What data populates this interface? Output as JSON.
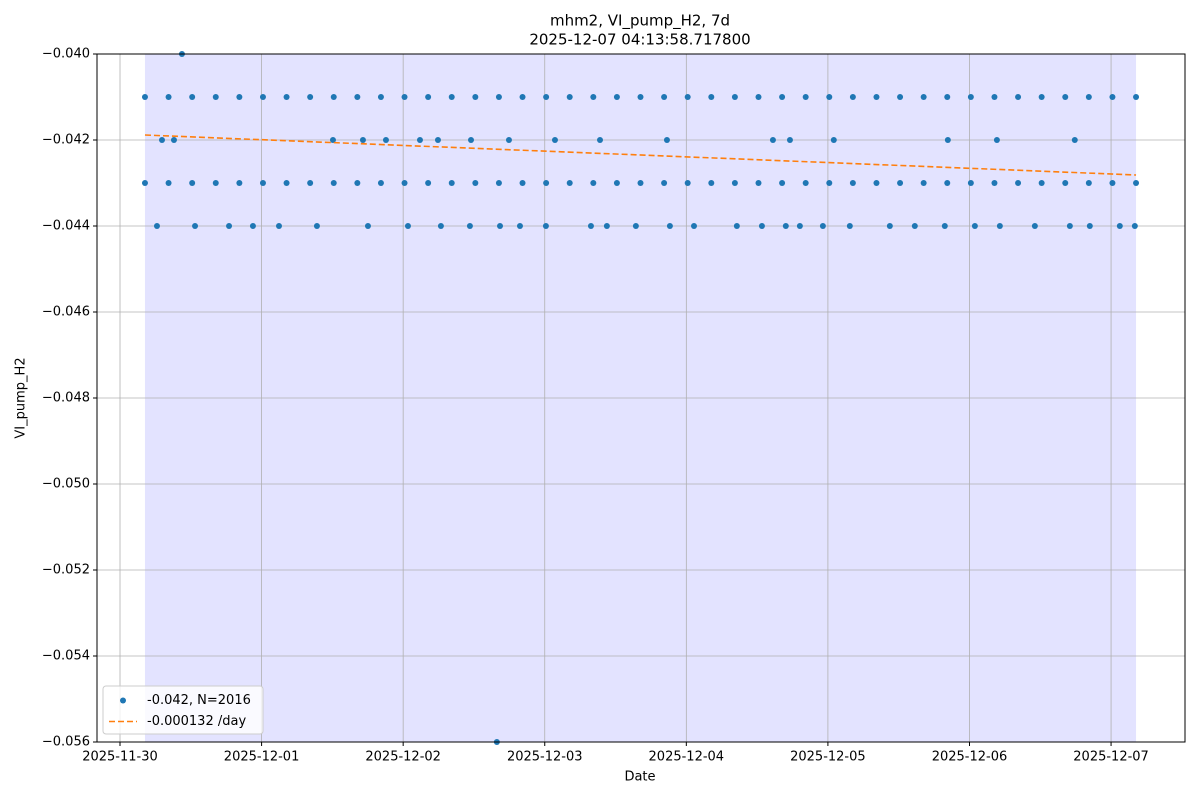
{
  "chart_data": {
    "type": "scatter",
    "title": "mhm2, VI_pump_H2, 7d",
    "subtitle": "2025-12-07 04:13:58.717800",
    "xlabel": "Date",
    "ylabel": "VI_pump_H2",
    "xlim": [
      "2025-11-29T20:06",
      "2025-12-07T12:32"
    ],
    "xticks": [
      "2025-11-30",
      "2025-12-01",
      "2025-12-02",
      "2025-12-03",
      "2025-12-04",
      "2025-12-05",
      "2025-12-06",
      "2025-12-07"
    ],
    "ylim": [
      -0.056,
      -0.04
    ],
    "yticks": [
      {
        "value": -0.056,
        "label": "−0.056"
      },
      {
        "value": -0.054,
        "label": "−0.054"
      },
      {
        "value": -0.052,
        "label": "−0.052"
      },
      {
        "value": -0.05,
        "label": "−0.050"
      },
      {
        "value": -0.048,
        "label": "−0.048"
      },
      {
        "value": -0.046,
        "label": "−0.046"
      },
      {
        "value": -0.044,
        "label": "−0.044"
      },
      {
        "value": -0.042,
        "label": "−0.042"
      },
      {
        "value": -0.04,
        "label": "−0.040"
      }
    ],
    "grid": true,
    "legend": "lower left",
    "span": [
      "2025-11-30T04:14",
      "2025-12-07T04:14"
    ],
    "span_color": "#0000ff",
    "series": [
      {
        "name": "-0.042, N=2016",
        "type": "scatter",
        "color": "#1f77b4",
        "x": [
          "2025-11-30T04:14",
          "2025-11-30T08:14",
          "2025-11-30T12:14",
          "2025-11-30T16:14",
          "2025-11-30T20:14",
          "2025-12-01T00:14",
          "2025-12-01T04:14",
          "2025-12-01T08:14",
          "2025-12-01T12:14",
          "2025-12-01T16:14",
          "2025-12-01T20:14",
          "2025-12-02T00:14",
          "2025-12-02T04:14",
          "2025-12-02T08:14",
          "2025-12-02T12:14",
          "2025-12-02T16:14",
          "2025-12-02T20:14",
          "2025-12-03T00:14",
          "2025-12-03T04:14",
          "2025-12-03T08:14",
          "2025-12-03T12:14",
          "2025-12-03T16:14",
          "2025-12-03T20:14",
          "2025-12-04T00:14",
          "2025-12-04T04:14",
          "2025-12-04T08:14",
          "2025-12-04T12:14",
          "2025-12-04T16:14",
          "2025-12-04T20:14",
          "2025-12-05T00:14",
          "2025-12-05T04:14",
          "2025-12-05T08:14",
          "2025-12-05T12:14",
          "2025-12-05T16:14",
          "2025-12-05T20:14",
          "2025-12-06T00:14",
          "2025-12-06T04:14",
          "2025-12-06T08:14",
          "2025-12-06T12:14",
          "2025-12-06T16:14",
          "2025-12-06T20:14",
          "2025-12-07T00:14",
          "2025-12-07T04:14",
          "2025-11-30T04:14",
          "2025-11-30T08:14",
          "2025-11-30T12:14",
          "2025-11-30T16:14",
          "2025-11-30T20:14",
          "2025-12-01T00:14",
          "2025-12-01T04:14",
          "2025-12-01T08:14",
          "2025-12-01T12:14",
          "2025-12-01T16:14",
          "2025-12-01T20:14",
          "2025-12-02T00:14",
          "2025-12-02T04:14",
          "2025-12-02T08:14",
          "2025-12-02T12:14",
          "2025-12-02T16:14",
          "2025-12-02T20:14",
          "2025-12-03T00:14",
          "2025-12-03T04:14",
          "2025-12-03T08:14",
          "2025-12-03T12:14",
          "2025-12-03T16:14",
          "2025-12-03T20:14",
          "2025-12-04T00:14",
          "2025-12-04T04:14",
          "2025-12-04T08:14",
          "2025-12-04T12:14",
          "2025-12-04T16:14",
          "2025-12-04T20:14",
          "2025-12-05T00:14",
          "2025-12-05T04:14",
          "2025-12-05T08:14",
          "2025-12-05T12:14",
          "2025-12-05T16:14",
          "2025-12-05T20:14",
          "2025-12-06T00:14",
          "2025-12-06T04:14",
          "2025-12-06T08:14",
          "2025-12-06T12:14",
          "2025-12-06T16:14",
          "2025-12-06T20:14",
          "2025-12-07T00:14",
          "2025-12-07T04:14",
          "2025-11-30T06:16",
          "2025-11-30T12:43",
          "2025-11-30T18:29",
          "2025-11-30T22:32",
          "2025-12-01T02:57",
          "2025-12-01T09:23",
          "2025-12-01T18:02",
          "2025-12-02T00:49",
          "2025-12-02T06:24",
          "2025-12-02T11:19",
          "2025-12-02T16:25",
          "2025-12-02T19:48",
          "2025-12-03T00:12",
          "2025-12-03T07:50",
          "2025-12-03T10:32",
          "2025-12-03T15:27",
          "2025-12-03T21:13",
          "2025-12-04T01:18",
          "2025-12-04T08:34",
          "2025-12-04T12:49",
          "2025-12-04T16:52",
          "2025-12-04T19:15",
          "2025-12-04T23:09",
          "2025-12-05T03:43",
          "2025-12-05T10:30",
          "2025-12-05T14:44",
          "2025-12-05T19:49",
          "2025-12-06T00:55",
          "2025-12-06T05:09",
          "2025-12-06T11:05",
          "2025-12-06T17:01",
          "2025-12-06T20:24",
          "2025-12-07T01:29",
          "2025-12-07T04:02",
          "2025-11-30T07:07",
          "2025-11-30T09:09",
          "2025-12-01T12:06",
          "2025-12-01T17:11",
          "2025-12-01T21:05",
          "2025-12-02T02:51",
          "2025-12-02T05:54",
          "2025-12-02T11:30",
          "2025-12-02T17:56",
          "2025-12-03T01:44",
          "2025-12-03T09:22",
          "2025-12-03T20:43",
          "2025-12-04T14:41",
          "2025-12-04T17:34",
          "2025-12-05T01:00",
          "2025-12-05T20:20",
          "2025-12-06T04:39",
          "2025-12-06T17:51",
          "2025-11-30T10:30",
          "2025-12-02T15:53"
        ],
        "values": [
          -0.041,
          -0.041,
          -0.041,
          -0.041,
          -0.041,
          -0.041,
          -0.041,
          -0.041,
          -0.041,
          -0.041,
          -0.041,
          -0.041,
          -0.041,
          -0.041,
          -0.041,
          -0.041,
          -0.041,
          -0.041,
          -0.041,
          -0.041,
          -0.041,
          -0.041,
          -0.041,
          -0.041,
          -0.041,
          -0.041,
          -0.041,
          -0.041,
          -0.041,
          -0.041,
          -0.041,
          -0.041,
          -0.041,
          -0.041,
          -0.041,
          -0.041,
          -0.041,
          -0.041,
          -0.041,
          -0.041,
          -0.041,
          -0.041,
          -0.041,
          -0.043,
          -0.043,
          -0.043,
          -0.043,
          -0.043,
          -0.043,
          -0.043,
          -0.043,
          -0.043,
          -0.043,
          -0.043,
          -0.043,
          -0.043,
          -0.043,
          -0.043,
          -0.043,
          -0.043,
          -0.043,
          -0.043,
          -0.043,
          -0.043,
          -0.043,
          -0.043,
          -0.043,
          -0.043,
          -0.043,
          -0.043,
          -0.043,
          -0.043,
          -0.043,
          -0.043,
          -0.043,
          -0.043,
          -0.043,
          -0.043,
          -0.043,
          -0.043,
          -0.043,
          -0.043,
          -0.043,
          -0.043,
          -0.043,
          -0.043,
          -0.044,
          -0.044,
          -0.044,
          -0.044,
          -0.044,
          -0.044,
          -0.044,
          -0.044,
          -0.044,
          -0.044,
          -0.044,
          -0.044,
          -0.044,
          -0.044,
          -0.044,
          -0.044,
          -0.044,
          -0.044,
          -0.044,
          -0.044,
          -0.044,
          -0.044,
          -0.044,
          -0.044,
          -0.044,
          -0.044,
          -0.044,
          -0.044,
          -0.044,
          -0.044,
          -0.044,
          -0.044,
          -0.044,
          -0.044,
          -0.042,
          -0.042,
          -0.042,
          -0.042,
          -0.042,
          -0.042,
          -0.042,
          -0.042,
          -0.042,
          -0.042,
          -0.042,
          -0.042,
          -0.042,
          -0.042,
          -0.042,
          -0.042,
          -0.042,
          -0.042,
          -0.04,
          -0.056
        ]
      },
      {
        "name": "-0.000132 /day",
        "type": "line",
        "color": "#ff7f0e",
        "dash": true,
        "x": [
          "2025-11-30T04:14",
          "2025-12-07T04:14"
        ],
        "values": [
          -0.041884,
          -0.042814
        ]
      }
    ]
  }
}
